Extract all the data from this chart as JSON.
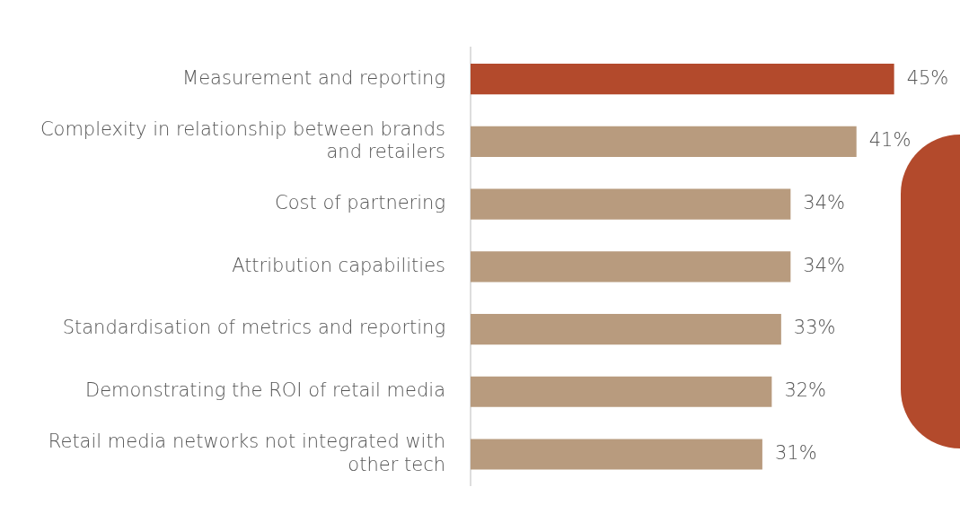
{
  "chart_data": {
    "type": "bar",
    "orientation": "horizontal",
    "categories": [
      "Measurement and reporting",
      "Complexity in relationship between brands\nand retailers",
      "Cost of partnering",
      "Attribution capabilities",
      "Standardisation of metrics and reporting",
      "Demonstrating the ROI of retail media",
      "Retail media networks not integrated with\nother tech"
    ],
    "values": [
      45,
      41,
      34,
      34,
      33,
      32,
      31
    ],
    "colors": [
      "#b34a2c",
      "#b89b7e",
      "#b89b7e",
      "#b89b7e",
      "#b89b7e",
      "#b89b7e",
      "#b89b7e"
    ],
    "value_labels": [
      "45%",
      "41%",
      "34%",
      "34%",
      "33%",
      "32%",
      "31%"
    ],
    "xlim": [
      0,
      52
    ],
    "tick_labels": "y",
    "grid": false,
    "legend": false
  }
}
